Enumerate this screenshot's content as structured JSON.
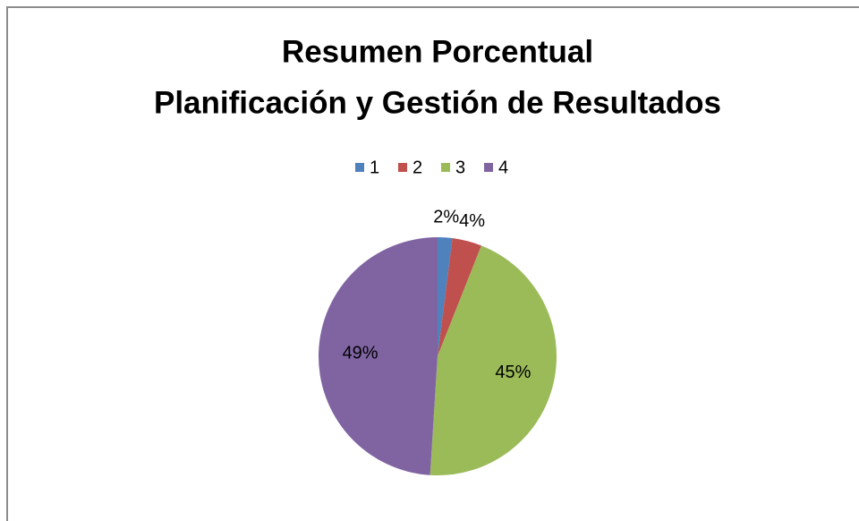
{
  "chart_data": {
    "type": "pie",
    "title": "Resumen Porcentual",
    "subtitle": "Planificación y Gestión de Resultados",
    "categories": [
      "1",
      "2",
      "3",
      "4"
    ],
    "values": [
      2,
      4,
      45,
      49
    ],
    "value_labels": [
      "2%",
      "4%",
      "45%",
      "49%"
    ],
    "colors": [
      "#4f81bd",
      "#c0504d",
      "#9bbb59",
      "#8064a2"
    ],
    "legend": "top"
  }
}
